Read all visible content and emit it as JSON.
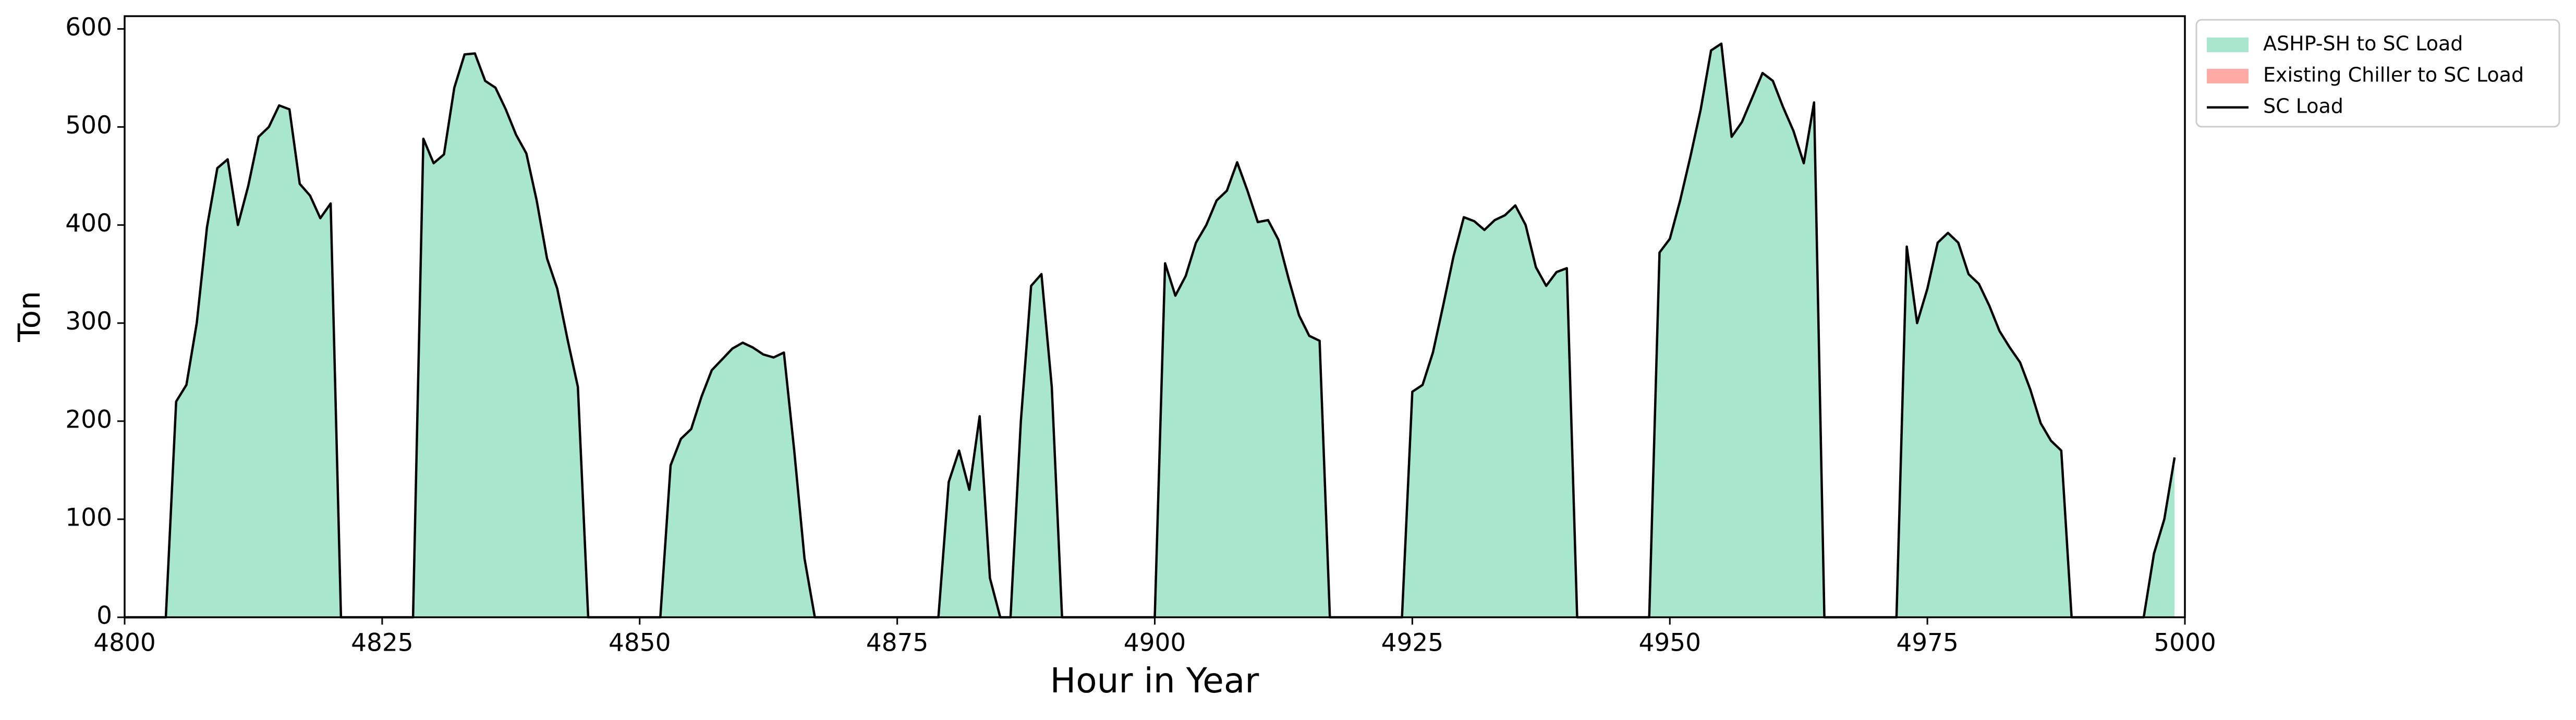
{
  "chart_data": {
    "type": "stacked_area_line",
    "x_label": "Hour in Year",
    "y_label": "Ton",
    "x": [
      4800,
      4801,
      4802,
      4803,
      4804,
      4805,
      4806,
      4807,
      4808,
      4809,
      4810,
      4811,
      4812,
      4813,
      4814,
      4815,
      4816,
      4817,
      4818,
      4819,
      4820,
      4821,
      4822,
      4823,
      4824,
      4825,
      4826,
      4827,
      4828,
      4829,
      4830,
      4831,
      4832,
      4833,
      4834,
      4835,
      4836,
      4837,
      4838,
      4839,
      4840,
      4841,
      4842,
      4843,
      4844,
      4845,
      4846,
      4847,
      4848,
      4849,
      4850,
      4851,
      4852,
      4853,
      4854,
      4855,
      4856,
      4857,
      4858,
      4859,
      4860,
      4861,
      4862,
      4863,
      4864,
      4865,
      4866,
      4867,
      4868,
      4869,
      4870,
      4871,
      4872,
      4873,
      4874,
      4875,
      4876,
      4877,
      4878,
      4879,
      4880,
      4881,
      4882,
      4883,
      4884,
      4885,
      4886,
      4887,
      4888,
      4889,
      4890,
      4891,
      4892,
      4893,
      4894,
      4895,
      4896,
      4897,
      4898,
      4899,
      4900,
      4901,
      4902,
      4903,
      4904,
      4905,
      4906,
      4907,
      4908,
      4909,
      4910,
      4911,
      4912,
      4913,
      4914,
      4915,
      4916,
      4917,
      4918,
      4919,
      4920,
      4921,
      4922,
      4923,
      4924,
      4925,
      4926,
      4927,
      4928,
      4929,
      4930,
      4931,
      4932,
      4933,
      4934,
      4935,
      4936,
      4937,
      4938,
      4939,
      4940,
      4941,
      4942,
      4943,
      4944,
      4945,
      4946,
      4947,
      4948,
      4949,
      4950,
      4951,
      4952,
      4953,
      4954,
      4955,
      4956,
      4957,
      4958,
      4959,
      4960,
      4961,
      4962,
      4963,
      4964,
      4965,
      4966,
      4967,
      4968,
      4969,
      4970,
      4971,
      4972,
      4973,
      4974,
      4975,
      4976,
      4977,
      4978,
      4979,
      4980,
      4981,
      4982,
      4983,
      4984,
      4985,
      4986,
      4987,
      4988,
      4989,
      4990,
      4991,
      4992,
      4993,
      4994,
      4995,
      4996,
      4997,
      4998,
      4999
    ],
    "series": [
      {
        "name": "ASHP-SH to SC Load",
        "kind": "area",
        "color": "#a8e6cf",
        "values": [
          0,
          0,
          0,
          0,
          0,
          220,
          237,
          300,
          398,
          458,
          467,
          400,
          440,
          490,
          500,
          522,
          518,
          442,
          430,
          407,
          422,
          0,
          0,
          0,
          0,
          0,
          0,
          0,
          0,
          488,
          463,
          472,
          540,
          574,
          575,
          547,
          540,
          518,
          492,
          473,
          425,
          366,
          335,
          283,
          235,
          0,
          0,
          0,
          0,
          0,
          0,
          0,
          0,
          155,
          182,
          192,
          225,
          252,
          263,
          274,
          280,
          275,
          268,
          265,
          270,
          170,
          60,
          0,
          0,
          0,
          0,
          0,
          0,
          0,
          0,
          0,
          0,
          0,
          0,
          0,
          138,
          170,
          130,
          205,
          40,
          0,
          0,
          200,
          338,
          350,
          235,
          0,
          0,
          0,
          0,
          0,
          0,
          0,
          0,
          0,
          0,
          361,
          328,
          348,
          382,
          400,
          425,
          435,
          464,
          435,
          403,
          405,
          385,
          345,
          308,
          287,
          282,
          0,
          0,
          0,
          0,
          0,
          0,
          0,
          0,
          230,
          237,
          270,
          318,
          368,
          408,
          404,
          395,
          405,
          410,
          420,
          400,
          357,
          338,
          352,
          356,
          0,
          0,
          0,
          0,
          0,
          0,
          0,
          0,
          372,
          386,
          425,
          470,
          518,
          578,
          585,
          490,
          505,
          530,
          555,
          547,
          520,
          496,
          463,
          525,
          0,
          0,
          0,
          0,
          0,
          0,
          0,
          0,
          378,
          300,
          335,
          382,
          392,
          382,
          350,
          340,
          318,
          292,
          275,
          260,
          232,
          198,
          180,
          170,
          0,
          0,
          0,
          0,
          0,
          0,
          0,
          0,
          65,
          100,
          163
        ]
      },
      {
        "name": "Existing Chiller to SC Load",
        "kind": "area",
        "color": "#ffaaa5",
        "values": [
          0,
          0,
          0,
          0,
          0,
          0,
          0,
          0,
          0,
          0,
          0,
          0,
          0,
          0,
          0,
          0,
          0,
          0,
          0,
          0,
          0,
          0,
          0,
          0,
          0,
          0,
          0,
          0,
          0,
          0,
          0,
          0,
          0,
          0,
          0,
          0,
          0,
          0,
          0,
          0,
          0,
          0,
          0,
          0,
          0,
          0,
          0,
          0,
          0,
          0,
          0,
          0,
          0,
          0,
          0,
          0,
          0,
          0,
          0,
          0,
          0,
          0,
          0,
          0,
          0,
          0,
          0,
          0,
          0,
          0,
          0,
          0,
          0,
          0,
          0,
          0,
          0,
          0,
          0,
          0,
          0,
          0,
          0,
          0,
          0,
          0,
          0,
          0,
          0,
          0,
          0,
          0,
          0,
          0,
          0,
          0,
          0,
          0,
          0,
          0,
          0,
          0,
          0,
          0,
          0,
          0,
          0,
          0,
          0,
          0,
          0,
          0,
          0,
          0,
          0,
          0,
          0,
          0,
          0,
          0,
          0,
          0,
          0,
          0,
          0,
          0,
          0,
          0,
          0,
          0,
          0,
          0,
          0,
          0,
          0,
          0,
          0,
          0,
          0,
          0,
          0,
          0,
          0,
          0,
          0,
          0,
          0,
          0,
          0,
          0,
          0,
          0,
          0,
          0,
          0,
          0,
          0,
          0,
          0,
          0,
          0,
          0,
          0,
          0,
          0,
          0,
          0,
          0,
          0,
          0,
          0,
          0,
          0,
          0,
          0,
          0,
          0,
          0,
          0,
          0,
          0,
          0,
          0,
          0,
          0,
          0,
          0,
          0,
          0,
          0,
          0,
          0,
          0,
          0,
          0,
          0,
          0,
          0,
          0,
          0
        ]
      },
      {
        "name": "SC Load",
        "kind": "line",
        "color": "#000000",
        "values": [
          0,
          0,
          0,
          0,
          0,
          220,
          237,
          300,
          398,
          458,
          467,
          400,
          440,
          490,
          500,
          522,
          518,
          442,
          430,
          407,
          422,
          0,
          0,
          0,
          0,
          0,
          0,
          0,
          0,
          488,
          463,
          472,
          540,
          574,
          575,
          547,
          540,
          518,
          492,
          473,
          425,
          366,
          335,
          283,
          235,
          0,
          0,
          0,
          0,
          0,
          0,
          0,
          0,
          155,
          182,
          192,
          225,
          252,
          263,
          274,
          280,
          275,
          268,
          265,
          270,
          170,
          60,
          0,
          0,
          0,
          0,
          0,
          0,
          0,
          0,
          0,
          0,
          0,
          0,
          0,
          138,
          170,
          130,
          205,
          40,
          0,
          0,
          200,
          338,
          350,
          235,
          0,
          0,
          0,
          0,
          0,
          0,
          0,
          0,
          0,
          0,
          361,
          328,
          348,
          382,
          400,
          425,
          435,
          464,
          435,
          403,
          405,
          385,
          345,
          308,
          287,
          282,
          0,
          0,
          0,
          0,
          0,
          0,
          0,
          0,
          230,
          237,
          270,
          318,
          368,
          408,
          404,
          395,
          405,
          410,
          420,
          400,
          357,
          338,
          352,
          356,
          0,
          0,
          0,
          0,
          0,
          0,
          0,
          0,
          372,
          386,
          425,
          470,
          518,
          578,
          585,
          490,
          505,
          530,
          555,
          547,
          520,
          496,
          463,
          525,
          0,
          0,
          0,
          0,
          0,
          0,
          0,
          0,
          378,
          300,
          335,
          382,
          392,
          382,
          350,
          340,
          318,
          292,
          275,
          260,
          232,
          198,
          180,
          170,
          0,
          0,
          0,
          0,
          0,
          0,
          0,
          0,
          65,
          100,
          163
        ]
      }
    ],
    "xlim": [
      4800,
      5000
    ],
    "xticks": [
      4800,
      4825,
      4850,
      4875,
      4900,
      4925,
      4950,
      4975,
      5000
    ],
    "ylim": [
      0,
      613
    ],
    "yticks": [
      0,
      100,
      200,
      300,
      400,
      500,
      600
    ],
    "grid": false,
    "legend": "outside-upper-right"
  }
}
